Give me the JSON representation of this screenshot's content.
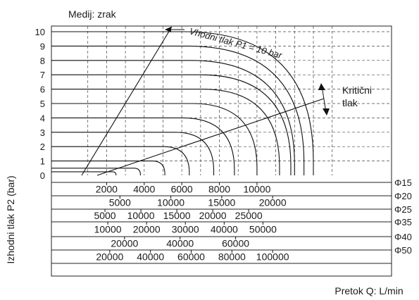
{
  "chart_data": {
    "type": "line",
    "title": "Medij: zrak",
    "ylabel": "Izhodni tlak P2 (bar)",
    "xlabel": "Pretok Q: L/min",
    "ylim": [
      0,
      10
    ],
    "yticks": [
      "0",
      "1",
      "2",
      "3",
      "4",
      "5",
      "6",
      "7",
      "8",
      "9",
      "10"
    ],
    "grid": true,
    "annotations": {
      "inlet_pressure": "Vhodni tlak P1 = 10 bar",
      "critical_line1": "Kritični",
      "critical_line2": "tlak"
    },
    "scale_rows": [
      {
        "label": "Φ15",
        "ticks": [
          2000,
          4000,
          6000,
          8000,
          10000
        ],
        "max": 13000
      },
      {
        "label": "Φ20",
        "ticks": [
          5000,
          10000,
          15000,
          20000
        ],
        "max": 24000
      },
      {
        "label": "Φ25",
        "ticks": [
          5000,
          10000,
          15000,
          20000,
          25000
        ],
        "max": 34000
      },
      {
        "label": "Φ35",
        "ticks": [
          10000,
          20000,
          30000,
          40000,
          50000
        ],
        "max": 63000
      },
      {
        "label": "Φ40",
        "ticks": [
          20000,
          40000,
          60000
        ],
        "max": 88000
      },
      {
        "label": "Φ50",
        "ticks": [
          20000,
          40000,
          60000,
          80000,
          100000
        ],
        "max": 120000
      }
    ],
    "series_basis": "Φ15",
    "series": [
      {
        "p2": 10,
        "flow_max": 13000
      },
      {
        "p2": 9,
        "flow_max": 12500
      },
      {
        "p2": 8,
        "flow_max": 12000
      },
      {
        "p2": 7,
        "flow_max": 11800
      },
      {
        "p2": 6,
        "flow_max": 11200
      },
      {
        "p2": 5,
        "flow_max": 10000
      },
      {
        "p2": 4,
        "flow_max": 8800
      },
      {
        "p2": 3,
        "flow_max": 7700
      },
      {
        "p2": 2,
        "flow_max": 6400
      },
      {
        "p2": 1,
        "flow_max": 5100
      },
      {
        "p2": 0.5,
        "flow_max": 3800
      },
      {
        "p2": 0.25,
        "flow_max": 2500
      }
    ]
  }
}
